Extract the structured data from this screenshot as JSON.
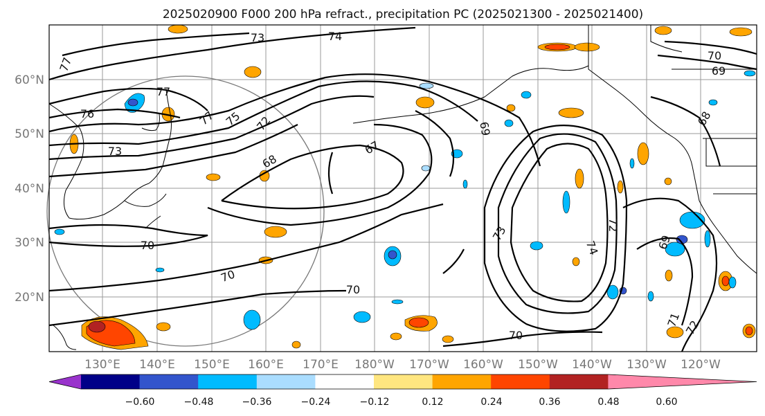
{
  "title": "2025020900 F000 200 hPa refract., precipitation PC (2025021300 - 2025021400)",
  "lat_labels": [
    "60°N",
    "50°N",
    "40°N",
    "30°N",
    "20°N"
  ],
  "lon_labels": [
    "130°E",
    "140°E",
    "150°E",
    "160°E",
    "170°E",
    "180°W",
    "170°W",
    "160°W",
    "150°W",
    "140°W",
    "130°W",
    "120°W"
  ],
  "contour_labels": [
    "73",
    "74",
    "77",
    "77",
    "76",
    "77",
    "75",
    "72",
    "73",
    "68",
    "67",
    "69",
    "70",
    "69",
    "68",
    "70",
    "70",
    "70",
    "73",
    "74",
    "72",
    "69",
    "70",
    "72",
    "71"
  ],
  "colorbar": {
    "ticks": [
      "−0.60",
      "−0.48",
      "−0.36",
      "−0.24",
      "−0.12",
      "0.12",
      "0.24",
      "0.36",
      "0.48",
      "0.60"
    ],
    "colors": [
      "#9933cc",
      "#000088",
      "#3355cc",
      "#00bbff",
      "#aaddff",
      "#ffffff",
      "#ffe680",
      "#ffa500",
      "#ff4500",
      "#b22222",
      "#ff88aa"
    ]
  }
}
